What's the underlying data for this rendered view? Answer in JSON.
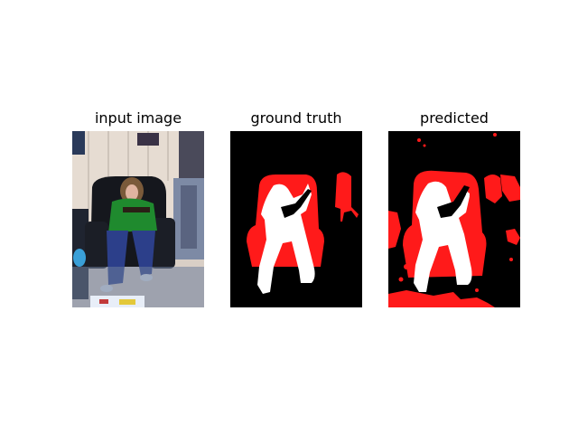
{
  "figure": {
    "panels": [
      {
        "id": "input",
        "title": "input image"
      },
      {
        "id": "truth",
        "title": "ground truth"
      },
      {
        "id": "pred",
        "title": "predicted"
      }
    ]
  },
  "colors": {
    "background": "#ffffff",
    "mask_background": "#000000",
    "class_chair": "#ff1a1a",
    "class_person": "#ffffff"
  }
}
